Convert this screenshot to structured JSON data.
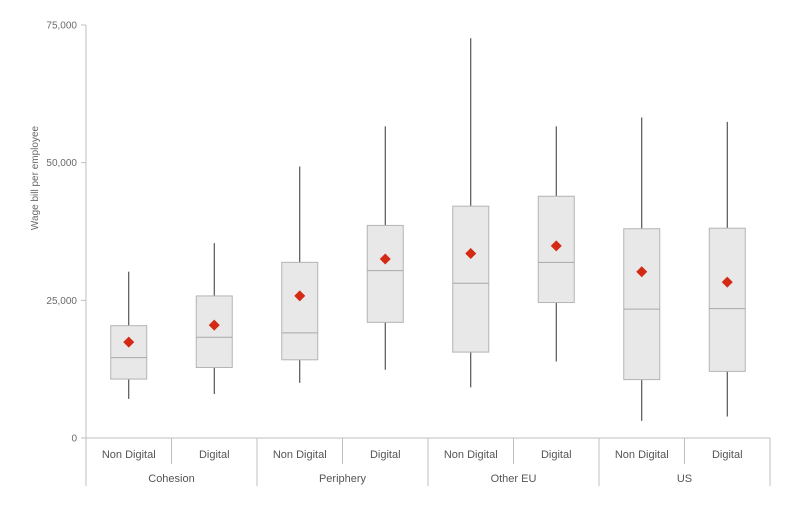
{
  "chart_data": {
    "type": "boxplot",
    "ylabel": "Wage bill per employee",
    "ylim": [
      0,
      75000
    ],
    "yticks": [
      {
        "value": 0,
        "label": "0"
      },
      {
        "value": 25000,
        "label": "25,000"
      },
      {
        "value": 50000,
        "label": "50,000"
      },
      {
        "value": 75000,
        "label": "75,000"
      }
    ],
    "groups": [
      "Cohesion",
      "Periphery",
      "Other EU",
      "US"
    ],
    "grid": false,
    "mean_marker_color": "#d42a14",
    "box_fill": "#e8e8e8",
    "box_stroke": "#b4b4b4",
    "boxes": [
      {
        "group": "Cohesion",
        "category": "Non Digital",
        "min": 7100,
        "q1": 10700,
        "median": 14600,
        "q3": 20400,
        "max": 30200,
        "mean": 17400
      },
      {
        "group": "Cohesion",
        "category": "Digital",
        "min": 8000,
        "q1": 12800,
        "median": 18300,
        "q3": 25800,
        "max": 35400,
        "mean": 20500
      },
      {
        "group": "Periphery",
        "category": "Non Digital",
        "min": 10000,
        "q1": 14200,
        "median": 19100,
        "q3": 31900,
        "max": 49300,
        "mean": 25800
      },
      {
        "group": "Periphery",
        "category": "Digital",
        "min": 12400,
        "q1": 21000,
        "median": 30400,
        "q3": 38600,
        "max": 56600,
        "mean": 32500
      },
      {
        "group": "Other EU",
        "category": "Non Digital",
        "min": 9200,
        "q1": 15600,
        "median": 28100,
        "q3": 42100,
        "max": 72600,
        "mean": 33500
      },
      {
        "group": "Other EU",
        "category": "Digital",
        "min": 13900,
        "q1": 24600,
        "median": 31900,
        "q3": 43900,
        "max": 56600,
        "mean": 34900
      },
      {
        "group": "US",
        "category": "Non Digital",
        "min": 3100,
        "q1": 10600,
        "median": 23400,
        "q3": 38000,
        "max": 58200,
        "mean": 30200
      },
      {
        "group": "US",
        "category": "Digital",
        "min": 3900,
        "q1": 12100,
        "median": 23500,
        "q3": 38100,
        "max": 57400,
        "mean": 28300
      }
    ]
  }
}
